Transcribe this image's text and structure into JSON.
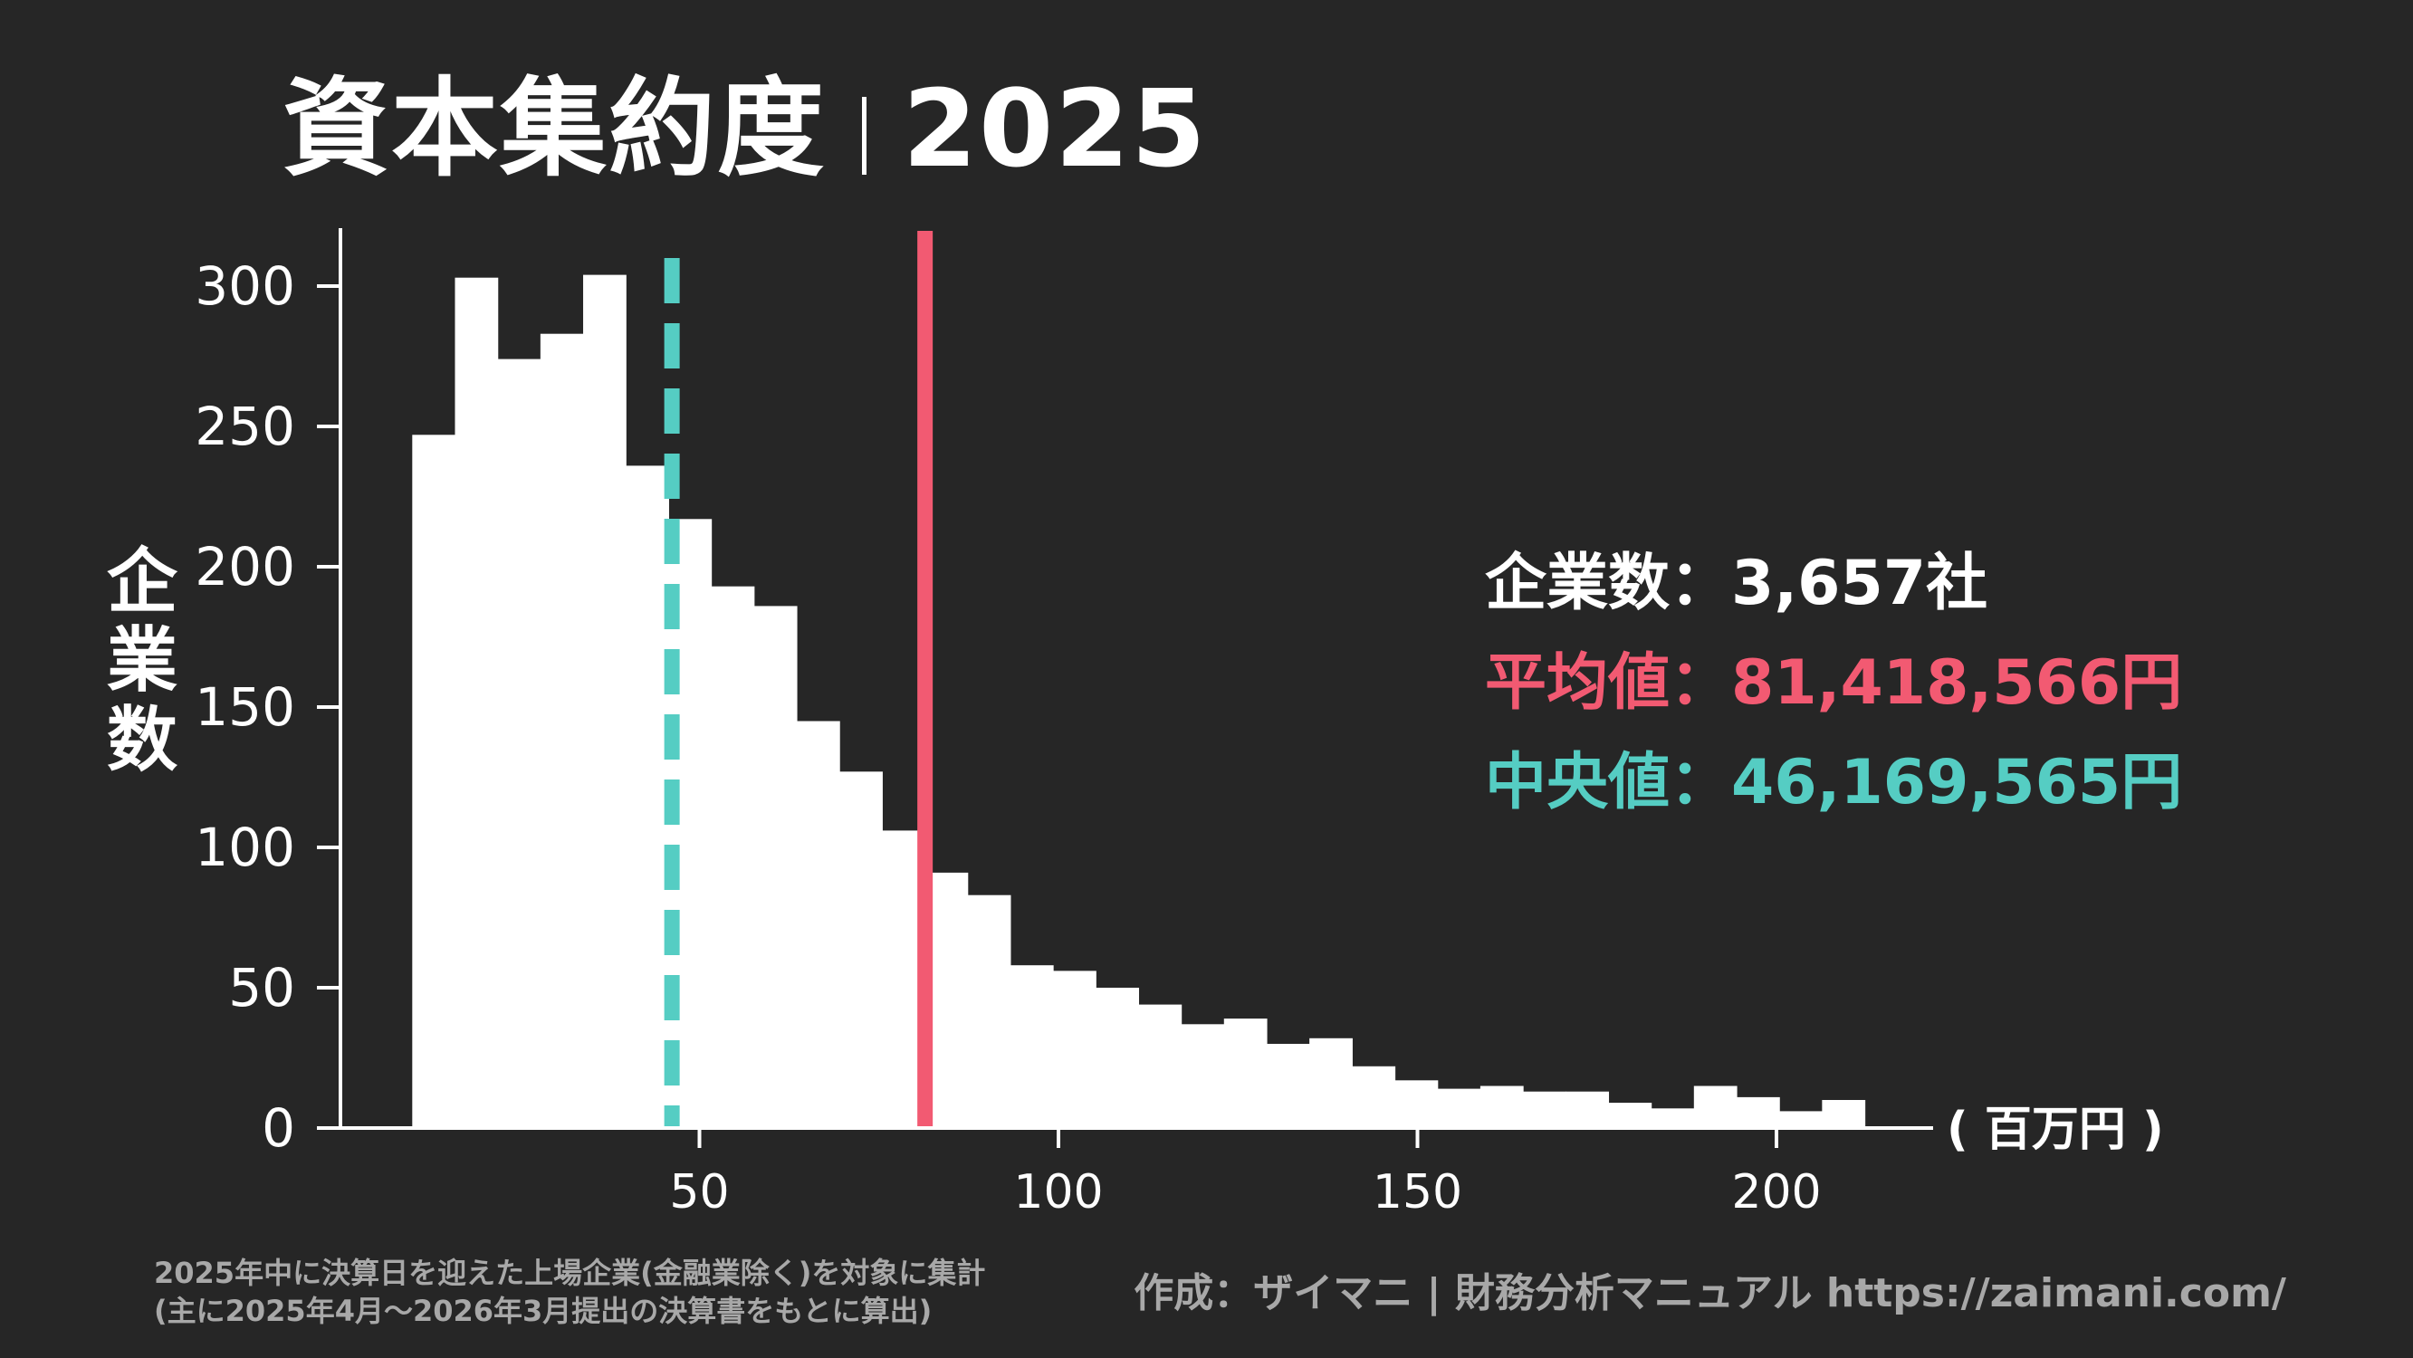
{
  "title": {
    "main": "資本集約度",
    "year": "2025"
  },
  "colors": {
    "background": "#262626",
    "bars": "#ffffff",
    "mean": "#f25a72",
    "median": "#55cdc3",
    "muted": "#a8a8a8"
  },
  "chart_data": {
    "type": "bar",
    "title": "資本集約度｜2025",
    "ylabel": "企業数",
    "xunit": "( 百万円 )",
    "xlim": [
      0,
      230
    ],
    "ylim": [
      0,
      320
    ],
    "xticks": [
      50,
      100,
      150,
      200
    ],
    "yticks": [
      0,
      50,
      100,
      150,
      200,
      250,
      300
    ],
    "bin_width": 5.95,
    "bin_starts": [
      10,
      15.95,
      21.9,
      27.85,
      33.8,
      39.75,
      45.7,
      51.65,
      57.6,
      63.55,
      69.5,
      75.45,
      81.4,
      87.35,
      93.3,
      99.25,
      105.2,
      111.15,
      117.1,
      123.05,
      129,
      134.95,
      140.9,
      146.85,
      152.8,
      158.75,
      164.7,
      170.65,
      176.6,
      182.55,
      188.5,
      194.45,
      200.4,
      206.35
    ],
    "values": [
      247,
      303,
      274,
      283,
      304,
      236,
      217,
      193,
      186,
      145,
      127,
      106,
      91,
      83,
      58,
      56,
      50,
      44,
      37,
      39,
      30,
      32,
      22,
      17,
      14,
      15,
      13,
      13,
      9,
      7,
      15,
      11,
      6,
      10
    ],
    "mean": 81.418566,
    "median": 46.169565,
    "grid": false,
    "legend": "none"
  },
  "stats": {
    "count_label": "企業数：",
    "count_value": "3,657社",
    "mean_label": "平均値：",
    "mean_value": "81,418,566円",
    "median_label": "中央値：",
    "median_value": "46,169,565円"
  },
  "footnote": {
    "line1": "2025年中に決算日を迎えた上場企業(金融業除く)を対象に集計",
    "line2": "(主に2025年4月〜2026年3月提出の決算書をもとに算出)"
  },
  "credit": "作成：ザイマニ | 財務分析マニュアル https://zaimani.com/"
}
